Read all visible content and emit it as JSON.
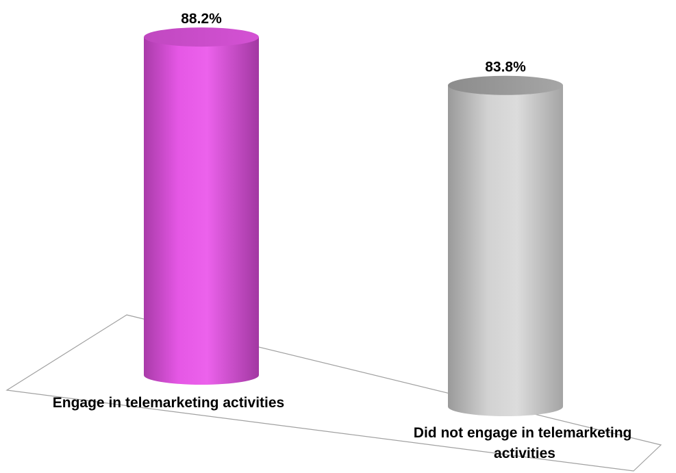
{
  "chart_data": {
    "type": "bar",
    "style": "3d-cylinder",
    "categories": [
      "Engage in telemarketing activities",
      "Did not engage in telemarketing activities"
    ],
    "values": [
      88.2,
      83.8
    ],
    "value_labels": [
      "88.2%",
      "83.8%"
    ],
    "colors": [
      "#e04fe0",
      "#c4c4c4"
    ],
    "title": "",
    "xlabel": "",
    "ylabel": "",
    "grid": false,
    "legend": "none"
  }
}
